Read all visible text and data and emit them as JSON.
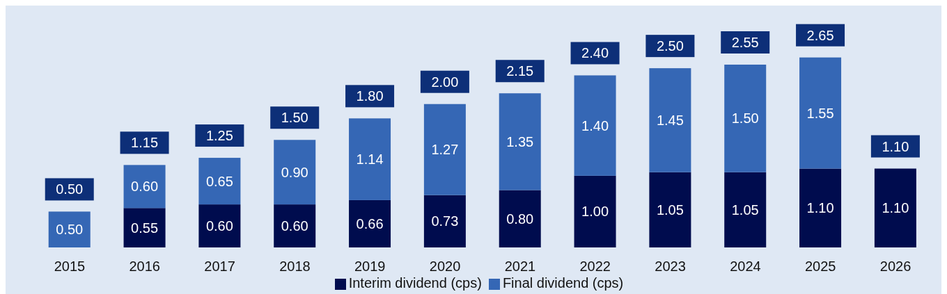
{
  "chart_data": {
    "type": "bar",
    "stacked": true,
    "legend": "bottom",
    "categories": [
      "2015",
      "2016",
      "2017",
      "2018",
      "2019",
      "2020",
      "2021",
      "2022",
      "2023",
      "2024",
      "2025",
      "2026"
    ],
    "series": [
      {
        "name": "Interim dividend (cps)",
        "color": "#000c4e",
        "values": [
          null,
          0.55,
          0.6,
          0.6,
          0.66,
          0.73,
          0.8,
          1.0,
          1.05,
          1.05,
          1.1,
          1.1
        ],
        "value_labels": [
          null,
          "0.55",
          "0.60",
          "0.60",
          "0.66",
          "0.73",
          "0.80",
          "1.00",
          "1.05",
          "1.05",
          "1.10",
          "1.10"
        ]
      },
      {
        "name": "Final dividend (cps)",
        "color": "#3567b5",
        "values": [
          0.5,
          0.6,
          0.65,
          0.9,
          1.14,
          1.27,
          1.35,
          1.4,
          1.45,
          1.5,
          1.55,
          null
        ],
        "value_labels": [
          "0.50",
          "0.60",
          "0.65",
          "0.90",
          "1.14",
          "1.27",
          "1.35",
          "1.40",
          "1.45",
          "1.50",
          "1.55",
          null
        ]
      }
    ],
    "totals": [
      "0.50",
      "1.15",
      "1.25",
      "1.50",
      "1.80",
      "2.00",
      "2.15",
      "2.40",
      "2.50",
      "2.55",
      "2.65",
      "1.10"
    ]
  }
}
